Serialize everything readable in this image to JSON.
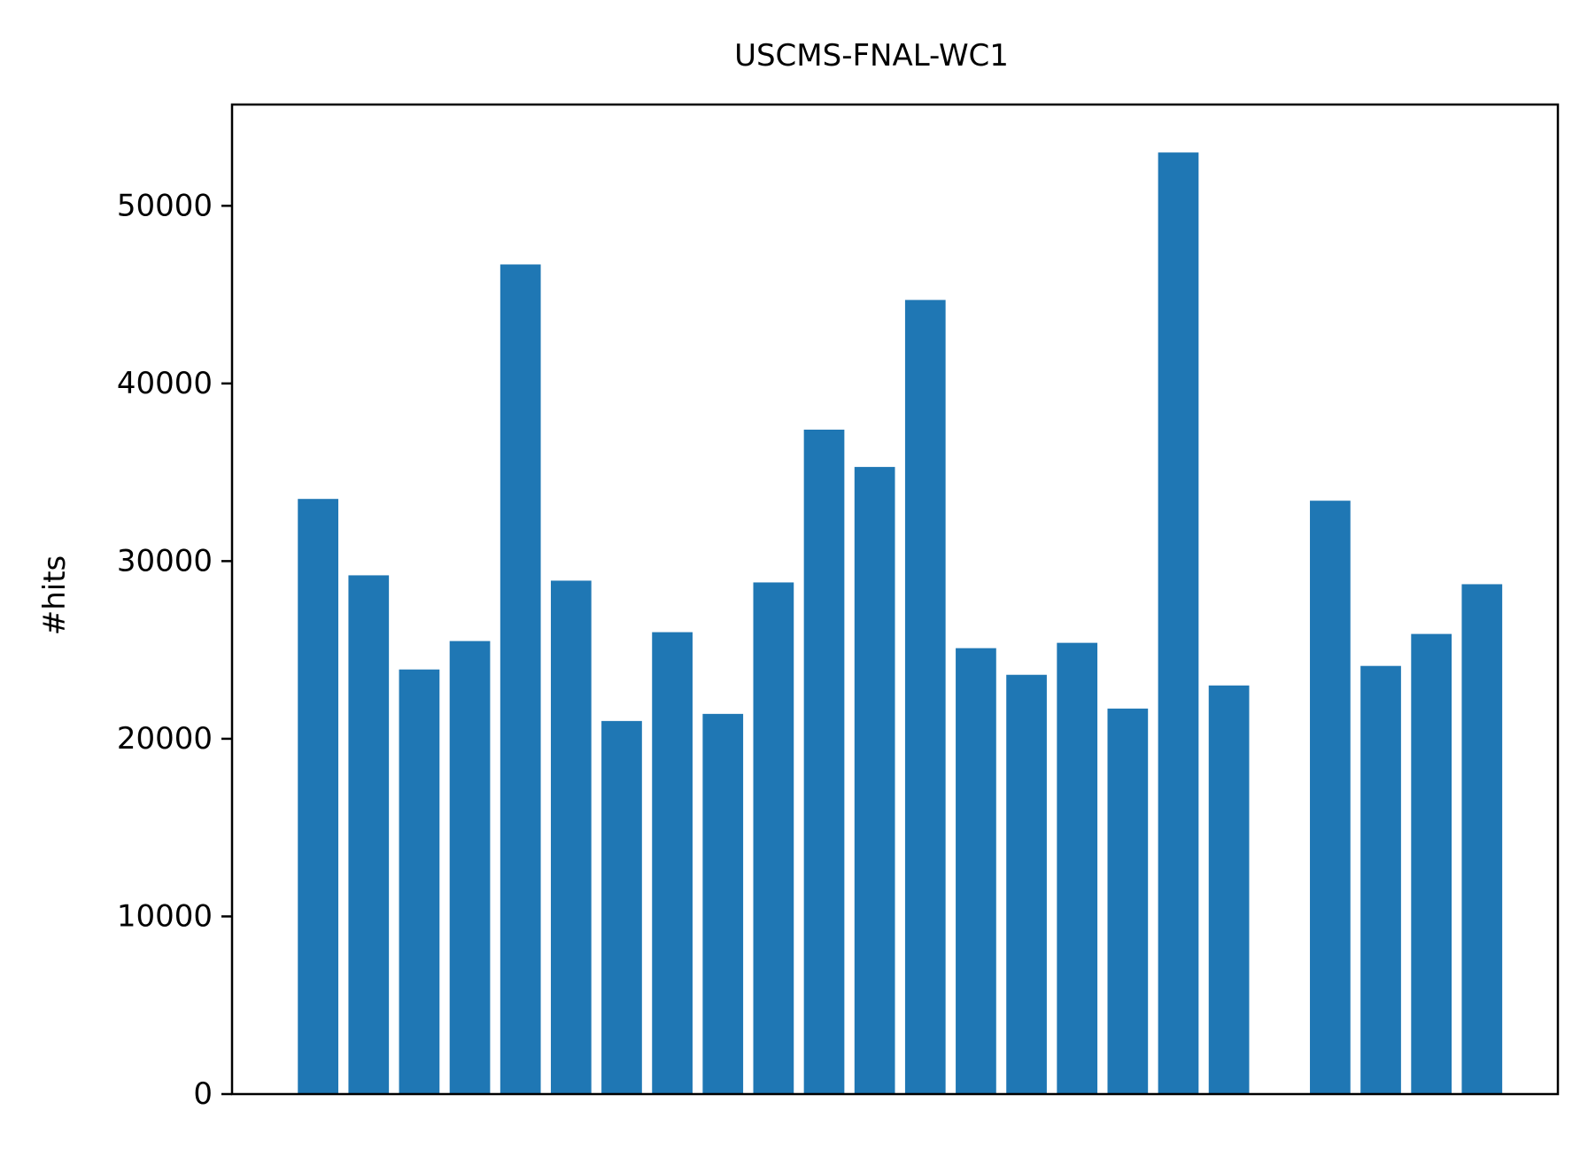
{
  "chart_data": {
    "type": "bar",
    "title": "USCMS-FNAL-WC1",
    "xlabel": "",
    "ylabel": "#hits",
    "ylim": [
      0,
      55700
    ],
    "xlim": [
      -1.7,
      24.5
    ],
    "yticks": [
      0,
      10000,
      20000,
      30000,
      40000,
      50000
    ],
    "ytick_labels": [
      "0",
      "10000",
      "20000",
      "30000",
      "40000",
      "50000"
    ],
    "x_tick_labels_shown": false,
    "grid": false,
    "legend": "none",
    "bar_color": "#1f77b4",
    "x": [
      0,
      1,
      2,
      3,
      4,
      5,
      6,
      7,
      8,
      9,
      10,
      11,
      12,
      13,
      14,
      15,
      16,
      17,
      18,
      20,
      21,
      22,
      23
    ],
    "values": [
      33500,
      29200,
      23900,
      25500,
      46700,
      28900,
      21000,
      26000,
      21400,
      28800,
      37400,
      35300,
      44700,
      25100,
      23600,
      25400,
      21700,
      53000,
      23000,
      33400,
      24100,
      25900,
      28700
    ]
  }
}
